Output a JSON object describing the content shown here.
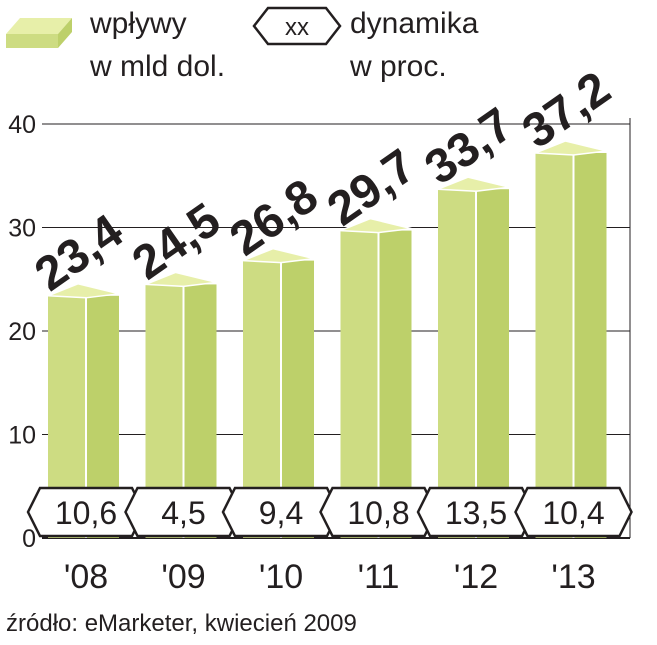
{
  "legend": {
    "bars_label_line1": "wpływy",
    "bars_label_line2": "w mld dol.",
    "badge_symbol": "xx",
    "badge_label_line1": "dynamika",
    "badge_label_line2": "w proc."
  },
  "source": "źródło: eMarketer, kwiecień 2009",
  "colors": {
    "bar_front": "#cddc82",
    "bar_side": "#bdd06a",
    "bar_top": "#e7efa9",
    "bar_outline": "#ffffff",
    "axis_text": "#231f20",
    "grid": "#231f20",
    "badge_fill": "#ffffff",
    "badge_stroke": "#231f20"
  },
  "chart_data": {
    "type": "bar",
    "categories": [
      "'08",
      "'09",
      "'10",
      "'11",
      "'12",
      "'13"
    ],
    "series": [
      {
        "values": [
          23.4,
          24.5,
          26.8,
          29.7,
          33.7,
          37.2
        ]
      },
      {
        "values": [
          10.6,
          4.5,
          9.4,
          10.8,
          13.5,
          10.4
        ]
      }
    ],
    "value_labels": [
      "23,4",
      "24,5",
      "26,8",
      "29,7",
      "33,7",
      "37,2"
    ],
    "growth_labels": [
      "10,6",
      "4,5",
      "9,4",
      "10,8",
      "13,5",
      "10,4"
    ],
    "yticks": [
      "0",
      "10",
      "20",
      "30",
      "40"
    ],
    "ylim": [
      0,
      40
    ],
    "grid": true,
    "legend_position": "top-left"
  }
}
